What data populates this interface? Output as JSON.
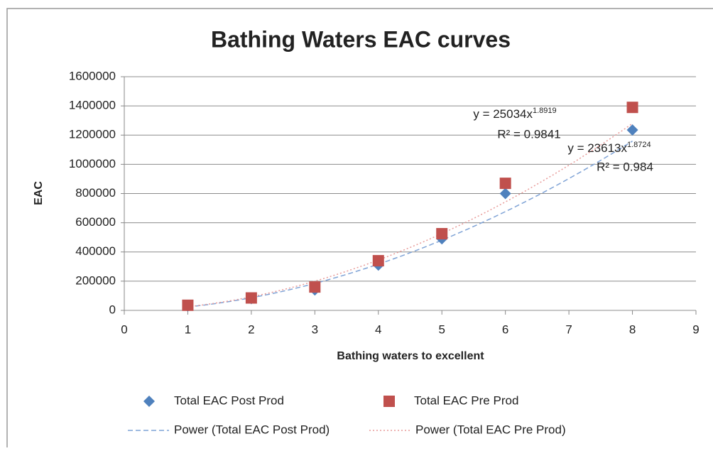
{
  "chart_data": {
    "type": "scatter",
    "title": "Bathing Waters EAC curves",
    "xlabel": "Bathing waters to excellent",
    "ylabel": "EAC",
    "xlim": [
      0,
      9
    ],
    "xticks": [
      0,
      1,
      2,
      3,
      4,
      5,
      6,
      7,
      8,
      9
    ],
    "ylim": [
      0,
      1600000
    ],
    "yticks": [
      0,
      200000,
      400000,
      600000,
      800000,
      1000000,
      1200000,
      1400000,
      1600000
    ],
    "grid": true,
    "legend": "bottom",
    "series": [
      {
        "name": "Total EAC Post Prod",
        "color": "#4f81bd",
        "marker": "diamond",
        "x": [
          1,
          2,
          3,
          4,
          5,
          6,
          8
        ],
        "values": [
          30000,
          80000,
          140000,
          310000,
          490000,
          800000,
          1235000
        ]
      },
      {
        "name": "Total EAC Pre Prod",
        "color": "#c0504d",
        "marker": "square",
        "x": [
          1,
          2,
          3,
          4,
          5,
          6,
          8
        ],
        "values": [
          35000,
          85000,
          160000,
          340000,
          525000,
          870000,
          1390000
        ]
      }
    ],
    "trendlines": [
      {
        "name": "Power (Total EAC Post Prod)",
        "color": "#7fa3d6",
        "dash": "7,4",
        "xrange": [
          1,
          8
        ],
        "equation": {
          "prefix": "y = ",
          "a": 23613,
          "var": "x",
          "b": 1.8724
        },
        "r2": "R² = 0.984"
      },
      {
        "name": "Power (Total EAC Pre Prod)",
        "color": "#e89a98",
        "dash": "2,3",
        "xrange": [
          1,
          8
        ],
        "equation": {
          "prefix": "y = ",
          "a": 25034,
          "var": "x",
          "b": 1.8919
        },
        "r2": "R² = 0.9841"
      }
    ]
  }
}
